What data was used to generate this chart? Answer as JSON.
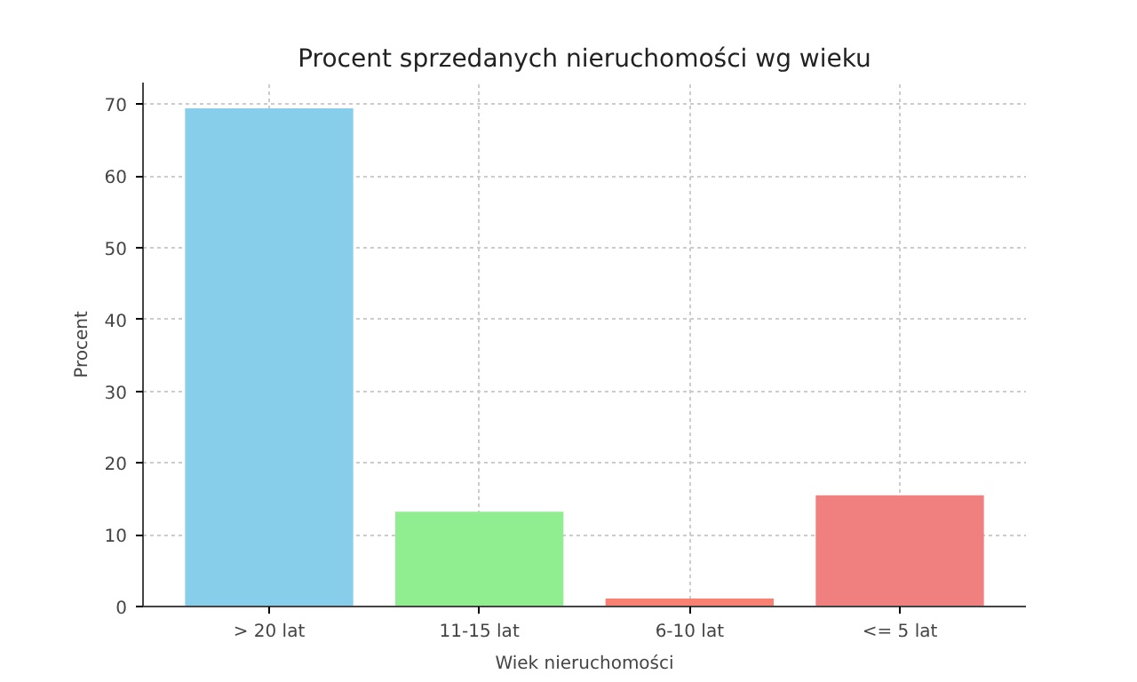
{
  "chart_data": {
    "type": "bar",
    "title": "Procent sprzedanych nieruchomości wg wieku",
    "xlabel": "Wiek nieruchomości",
    "ylabel": "Procent",
    "categories": [
      "> 20 lat",
      "11-15 lat",
      "6-10 lat",
      "<= 5 lat"
    ],
    "values": [
      69.4,
      13.2,
      1.1,
      15.5
    ],
    "colors": [
      "#87ceeb",
      "#90ee90",
      "#fa8072",
      "#f08080"
    ],
    "ylim": [
      0,
      73
    ],
    "yticks": [
      0,
      10,
      20,
      30,
      40,
      50,
      60,
      70
    ],
    "grid": true
  }
}
